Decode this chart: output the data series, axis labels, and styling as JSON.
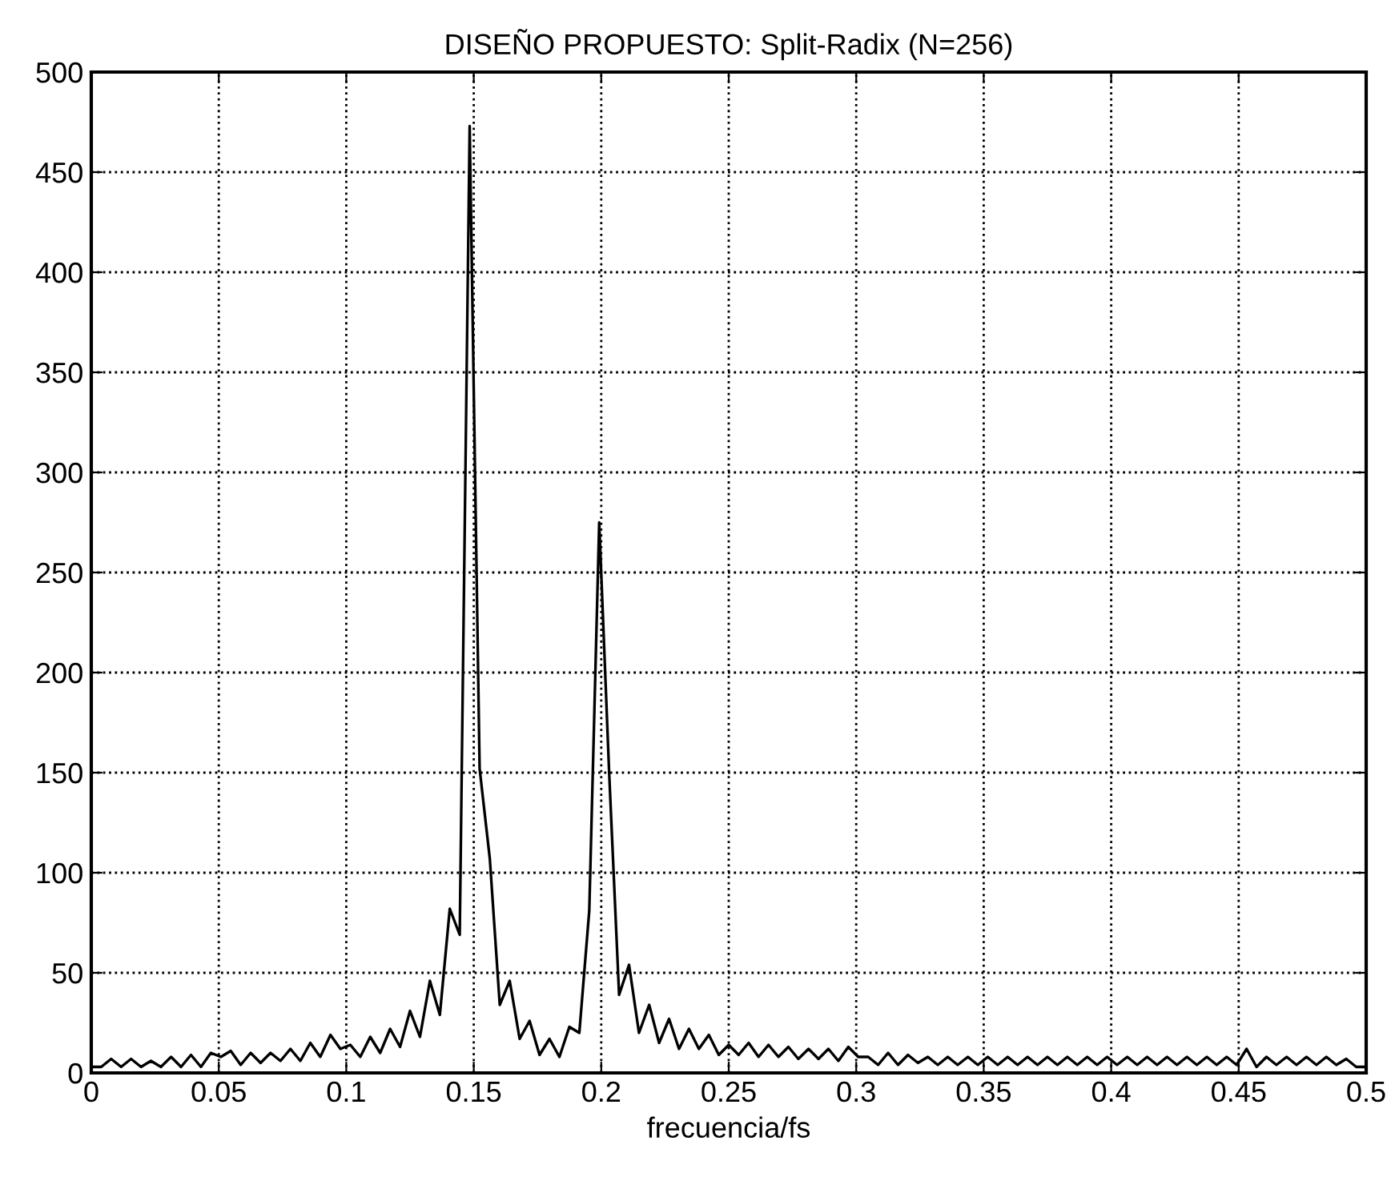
{
  "chart_data": {
    "type": "line",
    "title": "DISEÑO PROPUESTO: Split-Radix (N=256)",
    "xlabel": "frecuencia/fs",
    "x": [
      0,
      0.0039,
      0.0078,
      0.0117,
      0.0156,
      0.0195,
      0.0234,
      0.0273,
      0.0313,
      0.0352,
      0.0391,
      0.043,
      0.0469,
      0.0508,
      0.0547,
      0.0586,
      0.0625,
      0.0664,
      0.0703,
      0.0742,
      0.0781,
      0.082,
      0.0859,
      0.0898,
      0.0938,
      0.0977,
      0.1016,
      0.1055,
      0.1094,
      0.1133,
      0.1172,
      0.1211,
      0.125,
      0.1289,
      0.1328,
      0.1367,
      0.1406,
      0.1445,
      0.1484,
      0.1523,
      0.1563,
      0.1602,
      0.1641,
      0.168,
      0.1719,
      0.1758,
      0.1797,
      0.1836,
      0.1875,
      0.1914,
      0.1953,
      0.1992,
      0.2031,
      0.207,
      0.2109,
      0.2148,
      0.2188,
      0.2227,
      0.2266,
      0.2305,
      0.2344,
      0.2383,
      0.2422,
      0.2461,
      0.25,
      0.2539,
      0.2578,
      0.2617,
      0.2656,
      0.2695,
      0.2734,
      0.2773,
      0.2813,
      0.2852,
      0.2891,
      0.293,
      0.2969,
      0.3008,
      0.3047,
      0.3086,
      0.3125,
      0.3164,
      0.3203,
      0.3242,
      0.3281,
      0.332,
      0.3359,
      0.3398,
      0.3438,
      0.3477,
      0.3516,
      0.3555,
      0.3594,
      0.3633,
      0.3672,
      0.3711,
      0.375,
      0.3789,
      0.3828,
      0.3867,
      0.3906,
      0.3945,
      0.3984,
      0.4023,
      0.4063,
      0.4102,
      0.4141,
      0.418,
      0.4219,
      0.4258,
      0.4297,
      0.4336,
      0.4375,
      0.4414,
      0.4453,
      0.4492,
      0.4531,
      0.457,
      0.4609,
      0.4648,
      0.4688,
      0.4727,
      0.4766,
      0.4805,
      0.4844,
      0.4883,
      0.4922,
      0.4961,
      0.5
    ],
    "series": [
      {
        "color": "#000000",
        "values": [
          3,
          3,
          7,
          3,
          7,
          3,
          6,
          3,
          8,
          3,
          9,
          3,
          10,
          8,
          11,
          4,
          10,
          5,
          10,
          6,
          12,
          6,
          15,
          8,
          19,
          12,
          14,
          8,
          18,
          10,
          22,
          13,
          31,
          18,
          46,
          29,
          82,
          69,
          473,
          152,
          107,
          34,
          46,
          17,
          26,
          9,
          17,
          8,
          23,
          20,
          81,
          275,
          150,
          39,
          54,
          20,
          34,
          15,
          27,
          12,
          22,
          12,
          19,
          9,
          14,
          9,
          15,
          8,
          14,
          8,
          13,
          7,
          12,
          7,
          12,
          6,
          13,
          8,
          8,
          4,
          10,
          4,
          9,
          5,
          8,
          4,
          8,
          4,
          8,
          4,
          8,
          4,
          8,
          4,
          8,
          4,
          8,
          4,
          8,
          4,
          8,
          4,
          8,
          4,
          8,
          4,
          8,
          4,
          8,
          4,
          8,
          4,
          8,
          4,
          8,
          4,
          12,
          3,
          8,
          4,
          8,
          4,
          8,
          4,
          8,
          4,
          7,
          3,
          3
        ]
      }
    ],
    "xlim": [
      0,
      0.5
    ],
    "xticks": [
      0,
      0.05,
      0.1,
      0.15,
      0.2,
      0.25,
      0.3,
      0.35,
      0.4,
      0.45,
      0.5
    ],
    "ylim": [
      0,
      500
    ],
    "yticks": [
      0,
      50,
      100,
      150,
      200,
      250,
      300,
      350,
      400,
      450,
      500
    ],
    "grid": true,
    "marker": "none",
    "line_style": "solid",
    "legend": false
  }
}
